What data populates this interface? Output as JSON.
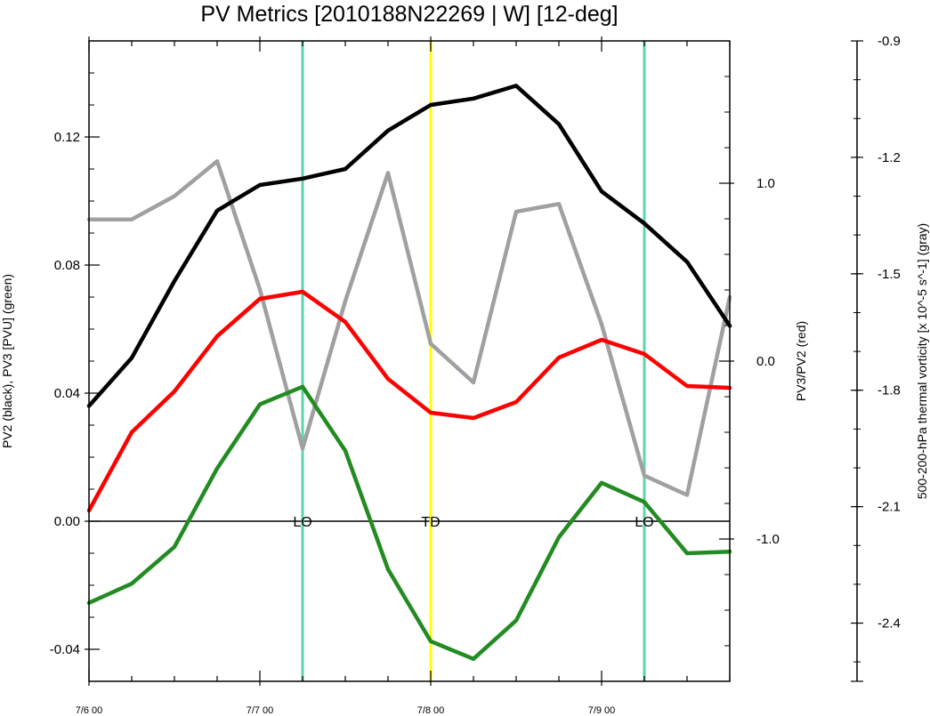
{
  "chart_data": {
    "type": "line",
    "title": "PV Metrics [2010188N22269 | W] [12-deg]",
    "x": [
      "7/6 00",
      "7/6 06",
      "7/6 12",
      "7/6 18",
      "7/7 00",
      "7/7 06",
      "7/7 12",
      "7/7 18",
      "7/8 00",
      "7/8 06",
      "7/8 12",
      "7/8 18",
      "7/9 00",
      "7/9 06",
      "7/9 12",
      "7/9 18"
    ],
    "x_tick_labels": [
      "7/6 00",
      "7/7 00",
      "7/8 00",
      "7/9 00"
    ],
    "left_axis": {
      "label": "PV2 (black), PV3 [PVU] (green)",
      "ylim": [
        -0.05,
        0.15
      ],
      "tick_labels": [
        "-0.04",
        "0.00",
        "0.04",
        "0.08",
        "0.12"
      ],
      "tick_values": [
        -0.04,
        0.0,
        0.04,
        0.08,
        0.12
      ]
    },
    "right_axis": {
      "label": "PV3/PV2 (red)",
      "ylim": [
        -1.8,
        1.8
      ],
      "tick_labels": [
        "-1.0",
        "0.0",
        "1.0"
      ],
      "tick_values": [
        -1.0,
        0.0,
        1.0
      ]
    },
    "far_right_axis": {
      "label": "500-200-hPa thermal vorticity [x 10^-5 s^-1] (gray)",
      "ylim": [
        -2.55,
        -0.9
      ],
      "tick_labels": [
        "-2.4",
        "-2.1",
        "-1.8",
        "-1.5",
        "-1.2",
        "-0.9"
      ],
      "tick_values": [
        -2.4,
        -2.1,
        -1.8,
        -1.5,
        -1.2,
        -0.9
      ]
    },
    "series": [
      {
        "name": "PV2",
        "axis": "left",
        "color": "#000000",
        "values": [
          0.036,
          0.051,
          0.075,
          0.097,
          0.105,
          0.107,
          0.11,
          0.122,
          0.13,
          0.132,
          0.136,
          0.124,
          0.103,
          0.093,
          0.081,
          0.061
        ]
      },
      {
        "name": "PV3",
        "axis": "left",
        "color": "#228b22",
        "values": [
          -0.0255,
          -0.0195,
          -0.008,
          0.0165,
          0.0365,
          0.042,
          0.022,
          -0.015,
          -0.0375,
          -0.043,
          -0.031,
          -0.005,
          0.012,
          0.006,
          -0.01,
          -0.0095
        ]
      },
      {
        "name": "PV3/PV2",
        "axis": "right",
        "color": "#ff0000",
        "values": [
          -0.84,
          -0.4,
          -0.17,
          0.14,
          0.35,
          0.39,
          0.22,
          -0.1,
          -0.29,
          -0.32,
          -0.23,
          0.02,
          0.12,
          0.04,
          -0.14,
          -0.15
        ]
      },
      {
        "name": "thermal vorticity",
        "axis": "far_right",
        "color": "#a0a0a0",
        "values": [
          -1.36,
          -1.36,
          -1.3,
          -1.21,
          -1.54,
          -1.95,
          -1.57,
          -1.24,
          -1.68,
          -1.78,
          -1.34,
          -1.32,
          -1.63,
          -2.02,
          -2.07,
          -1.56
        ]
      }
    ],
    "event_lines": [
      {
        "label": "LO",
        "x": "7/7 06",
        "color": "#5fd4a8"
      },
      {
        "label": "TD",
        "x": "7/8 00",
        "color": "#ffff00"
      },
      {
        "label": "LO",
        "x": "7/9 06",
        "color": "#5fd4a8"
      }
    ],
    "zero_line": true,
    "grid": false,
    "legend": "none"
  }
}
